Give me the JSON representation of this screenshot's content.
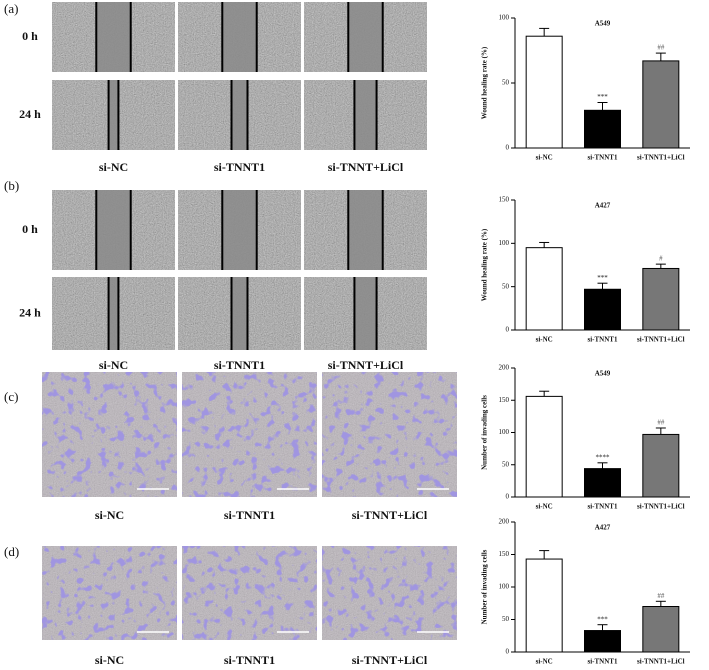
{
  "image_panels": [
    {
      "label": "(a)",
      "row_labels": [
        "0 h",
        "24 h"
      ],
      "column_labels": [
        "si-NC",
        "si-TNNT1",
        "si-TNNT+LiCl"
      ]
    },
    {
      "label": "(b)",
      "row_labels": [
        "0 h",
        "24 h"
      ],
      "column_labels": [
        "si-NC",
        "si-TNNT1",
        "si-TNNT+LiCl"
      ]
    },
    {
      "label": "(c)",
      "column_labels": [
        "si-NC",
        "si-TNNT1",
        "si-TNNT+LiCl"
      ]
    },
    {
      "label": "(d)",
      "column_labels": [
        "si-NC",
        "si-TNNT1",
        "si-TNNT+LiCl"
      ]
    }
  ],
  "chart_data": [
    {
      "type": "bar",
      "title": "A549",
      "y_label": "Wound healing rate (%)",
      "categories": [
        "si-NC",
        "si-TNNT1",
        "si-TNNT1+LiCl"
      ],
      "values": [
        86,
        29,
        67
      ],
      "errors": [
        6,
        6,
        6
      ],
      "colors": [
        "#ffffff",
        "#000000",
        "#777777"
      ],
      "significance": [
        null,
        "***",
        "##"
      ],
      "ylim": [
        0,
        100
      ],
      "yticks": [
        0,
        50,
        100
      ]
    },
    {
      "type": "bar",
      "title": "A427",
      "y_label": "Wound healing rate (%)",
      "categories": [
        "si-NC",
        "si-TNNT1",
        "si-TNNT1+LiCl"
      ],
      "values": [
        95,
        47,
        71
      ],
      "errors": [
        6,
        7,
        5
      ],
      "colors": [
        "#ffffff",
        "#000000",
        "#777777"
      ],
      "significance": [
        null,
        "***",
        "#"
      ],
      "ylim": [
        0,
        150
      ],
      "yticks": [
        0,
        50,
        100,
        150
      ]
    },
    {
      "type": "bar",
      "title": "A549",
      "y_label": "Number of invading cells",
      "categories": [
        "si-NC",
        "si-TNNT1",
        "si-TNNT1+LiCl"
      ],
      "values": [
        156,
        44,
        97
      ],
      "errors": [
        8,
        9,
        10
      ],
      "colors": [
        "#ffffff",
        "#000000",
        "#777777"
      ],
      "significance": [
        null,
        "****",
        "##"
      ],
      "ylim": [
        0,
        200
      ],
      "yticks": [
        0,
        50,
        100,
        150,
        200
      ]
    },
    {
      "type": "bar",
      "title": "A427",
      "y_label": "Number of invading cells",
      "categories": [
        "si-NC",
        "si-TNNT1",
        "si-TNNT1+LiCl"
      ],
      "values": [
        143,
        33,
        70
      ],
      "errors": [
        13,
        9,
        8
      ],
      "colors": [
        "#ffffff",
        "#000000",
        "#777777"
      ],
      "significance": [
        null,
        "***",
        "##"
      ],
      "ylim": [
        0,
        200
      ],
      "yticks": [
        0,
        50,
        100,
        150,
        200
      ]
    }
  ]
}
